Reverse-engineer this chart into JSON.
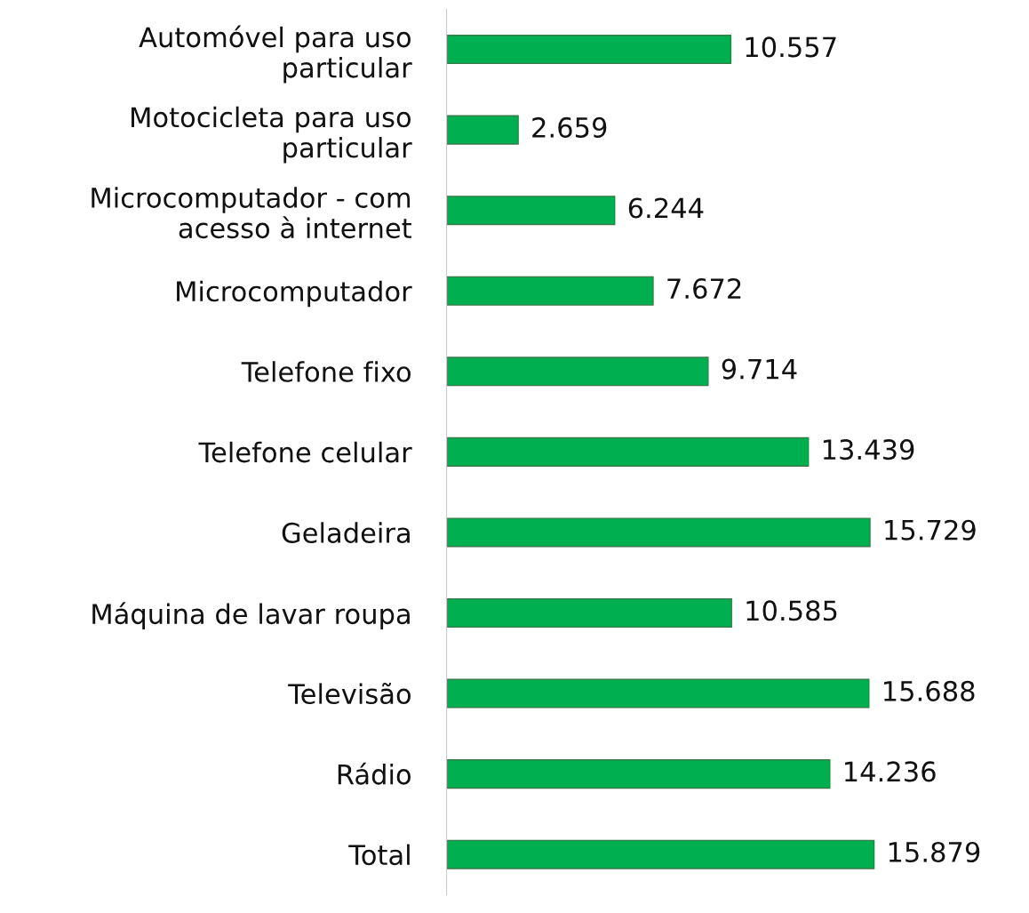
{
  "chart_data": {
    "type": "bar",
    "orientation": "horizontal",
    "categories": [
      "Automóvel para uso\nparticular",
      "Motocicleta para uso\nparticular",
      "Microcomputador - com\nacesso à internet",
      "Microcomputador",
      "Telefone fixo",
      "Telefone celular",
      "Geladeira",
      "Máquina de lavar roupa",
      "Televisão",
      "Rádio",
      "Total"
    ],
    "values": [
      10557,
      2659,
      6244,
      7672,
      9714,
      13439,
      15729,
      10585,
      15688,
      14236,
      15879
    ],
    "value_labels": [
      "10.557",
      "2.659",
      "6.244",
      "7.672",
      "9.714",
      "13.439",
      "15.729",
      "10.585",
      "15.688",
      "14.236",
      "15.879"
    ],
    "color": "#00b050",
    "grid": false
  }
}
